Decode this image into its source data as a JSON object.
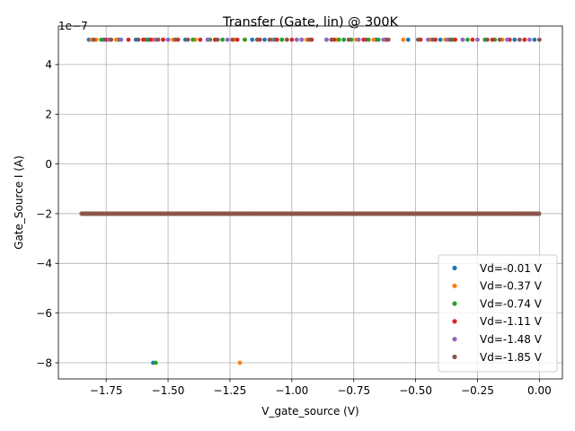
{
  "chart_data": {
    "type": "scatter",
    "title": "Transfer (Gate, lin) @ 300K",
    "xlabel": "V_gate_source (V)",
    "ylabel": "Gate_Source I (A)",
    "y_multiplier_label": "1e−7",
    "y_scale": 1e-07,
    "xlim": [
      -1.943,
      0.093
    ],
    "ylim": [
      -8.65e-07,
      5.55e-07
    ],
    "x_ticks": [
      -1.75,
      -1.5,
      -1.25,
      -1.0,
      -0.75,
      -0.5,
      -0.25,
      0.0
    ],
    "x_tick_labels": [
      "−1.75",
      "−1.50",
      "−1.25",
      "−1.00",
      "−0.75",
      "−0.50",
      "−0.25",
      "0.00"
    ],
    "y_ticks": [
      -8e-07,
      -6e-07,
      -4e-07,
      -2e-07,
      0,
      2e-07,
      4e-07
    ],
    "y_tick_labels": [
      "−8",
      "−6",
      "−4",
      "−2",
      "0",
      "2",
      "4"
    ],
    "grid": true,
    "legend_position": "lower-right",
    "series": [
      {
        "name": "Vd=-0.01 V",
        "color": "#1f77b4",
        "high_x": [
          -1.82,
          -1.76,
          -1.7,
          -1.63,
          -1.58,
          -1.5,
          -1.43,
          -1.34,
          -1.28,
          -1.16,
          -1.11,
          -1.04,
          -0.98,
          -0.86,
          -0.79,
          -0.66,
          -0.53,
          -0.4,
          -0.31,
          -0.22,
          -0.1,
          -0.02
        ],
        "mid_x": [],
        "low_x": [
          -1.56
        ]
      },
      {
        "name": "Vd=-0.37 V",
        "color": "#ff7f0e",
        "high_x": [
          -1.81,
          -1.79,
          -1.71,
          -1.56,
          -1.48,
          -1.39,
          -1.31,
          -1.23,
          -1.19,
          -1.02,
          -0.94,
          -0.82,
          -0.74,
          -0.67,
          -0.55,
          -0.44,
          -0.38,
          -0.22,
          -0.15,
          -0.06
        ],
        "mid_x": [],
        "low_x": [
          -1.21
        ]
      },
      {
        "name": "Vd=-0.74 V",
        "color": "#2ca02c",
        "high_x": [
          -1.77,
          -1.69,
          -1.59,
          -1.52,
          -1.4,
          -1.33,
          -1.28,
          -1.19,
          -1.07,
          -1.04,
          -0.96,
          -0.81,
          -0.79,
          -0.76,
          -0.69,
          -0.65,
          -0.35,
          -0.29,
          -0.22,
          -0.18
        ],
        "mid_x": [],
        "low_x": [
          -1.55
        ]
      },
      {
        "name": "Vd=-1.11 V",
        "color": "#d62728",
        "high_x": [
          -1.75,
          -1.66,
          -1.6,
          -1.57,
          -1.52,
          -1.46,
          -1.37,
          -1.31,
          -1.22,
          -1.13,
          -1.06,
          -1.0,
          -0.92,
          -0.83,
          -0.71,
          -0.62,
          -0.48,
          -0.42,
          -0.34,
          -0.27,
          -0.19,
          -0.12,
          -0.06
        ],
        "mid_x": [],
        "low_x": []
      },
      {
        "name": "Vd=-1.48 V",
        "color": "#9467bd",
        "high_x": [
          -1.74,
          -1.69,
          -1.55,
          -1.5,
          -1.34,
          -1.26,
          -1.08,
          -0.98,
          -0.96,
          -0.86,
          -0.73,
          -0.63,
          -0.45,
          -0.37,
          -0.31,
          -0.25,
          -0.13,
          -0.04
        ],
        "mid_x": [
          -0.01
        ],
        "low_x": []
      },
      {
        "name": "Vd=-1.85 V",
        "color": "#8c564b",
        "high_x": [
          -1.8,
          -1.73,
          -1.62,
          -1.54,
          -1.47,
          -1.42,
          -1.3,
          -1.24,
          -1.14,
          -1.09,
          -1.02,
          -0.93,
          -0.84,
          -0.77,
          -0.7,
          -0.61,
          -0.49,
          -0.43,
          -0.36,
          -0.21,
          -0.16,
          -0.08,
          0.0
        ],
        "mid_x": [],
        "low_x": []
      }
    ],
    "high_level_y": 5e-07,
    "mid_level_y": -2e-07,
    "low_level_y": -8e-07,
    "mid_x_range": [
      -1.85,
      0.0
    ]
  }
}
